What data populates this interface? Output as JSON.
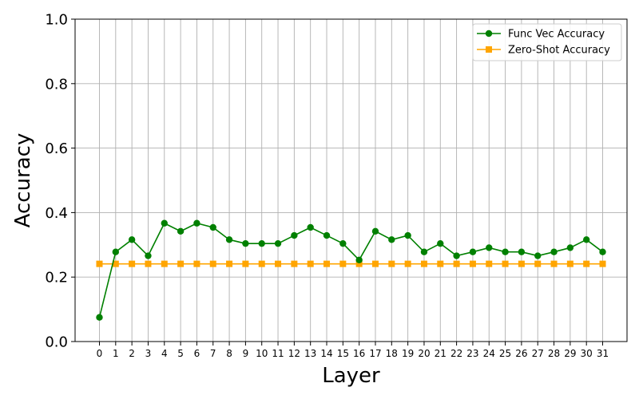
{
  "chart_data": {
    "type": "line",
    "xlabel": "Layer",
    "ylabel": "Accuracy",
    "x": [
      0,
      1,
      2,
      3,
      4,
      5,
      6,
      7,
      8,
      9,
      10,
      11,
      12,
      13,
      14,
      15,
      16,
      17,
      18,
      19,
      20,
      21,
      22,
      23,
      24,
      25,
      26,
      27,
      28,
      29,
      30,
      31
    ],
    "xlim": [
      -1.5,
      32.5
    ],
    "ylim": [
      0.0,
      1.0
    ],
    "yticks": [
      0.0,
      0.2,
      0.4,
      0.6,
      0.8,
      1.0
    ],
    "ytick_labels": [
      "0.0",
      "0.2",
      "0.4",
      "0.6",
      "0.8",
      "1.0"
    ],
    "grid": true,
    "legend_position": "top-right",
    "series": [
      {
        "name": "Func Vec Accuracy",
        "color": "#008000",
        "marker": "circle",
        "values": [
          0.075,
          0.278,
          0.316,
          0.266,
          0.367,
          0.342,
          0.367,
          0.354,
          0.316,
          0.304,
          0.304,
          0.304,
          0.329,
          0.354,
          0.329,
          0.304,
          0.253,
          0.342,
          0.316,
          0.329,
          0.278,
          0.304,
          0.266,
          0.278,
          0.291,
          0.278,
          0.278,
          0.266,
          0.278,
          0.291,
          0.316,
          0.278
        ]
      },
      {
        "name": "Zero-Shot Accuracy",
        "color": "#ffa500",
        "marker": "square",
        "values": [
          0.241,
          0.241,
          0.241,
          0.241,
          0.241,
          0.241,
          0.241,
          0.241,
          0.241,
          0.241,
          0.241,
          0.241,
          0.241,
          0.241,
          0.241,
          0.241,
          0.241,
          0.241,
          0.241,
          0.241,
          0.241,
          0.241,
          0.241,
          0.241,
          0.241,
          0.241,
          0.241,
          0.241,
          0.241,
          0.241,
          0.241,
          0.241
        ]
      }
    ]
  }
}
